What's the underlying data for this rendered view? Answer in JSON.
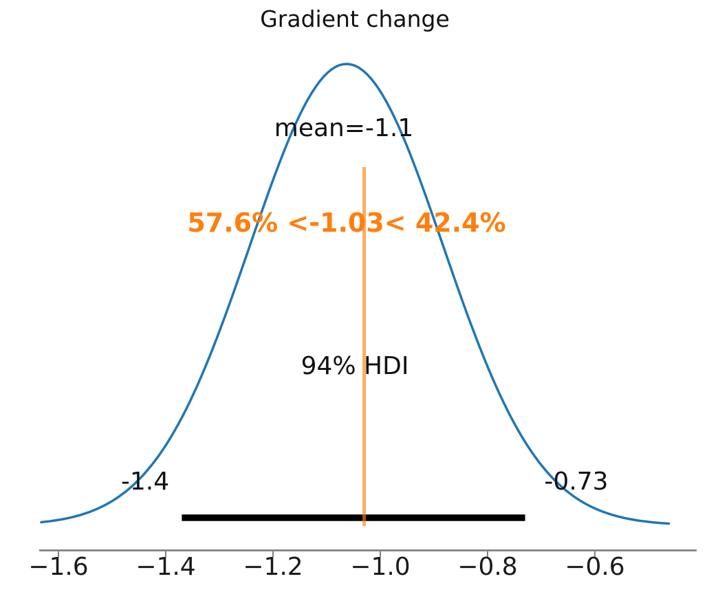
{
  "chart_data": {
    "type": "kde",
    "title": "Gradient change",
    "point_estimate": {
      "kind": "mean",
      "value": -1.1,
      "label": "mean=-1.1"
    },
    "hdi": {
      "prob": 0.94,
      "label": "94% HDI",
      "lower": -1.37,
      "upper": -0.73,
      "lower_label": "-1.4",
      "upper_label": "-0.73"
    },
    "ref_val": {
      "value": -1.03,
      "pct_below": 57.6,
      "pct_above": 42.4,
      "label": "57.6% <-1.03< 42.4%"
    },
    "x_axis": {
      "ticks": [
        -1.6,
        -1.4,
        -1.2,
        -1.0,
        -0.8,
        -0.6
      ],
      "tick_labels": [
        "−1.6",
        "−1.4",
        "−1.2",
        "−1.0",
        "−0.8",
        "−0.6"
      ],
      "range": [
        -1.636,
        -0.41
      ]
    },
    "density": {
      "mode": -1.063,
      "sigma": 0.18,
      "x_start": -1.632,
      "x_end": -0.462
    },
    "colors": {
      "curve": "#1f77b4",
      "ref_line_rgba": "rgba(255,127,14,0.65)",
      "ref_text": "#ff7f0e",
      "hdi_bar": "#000000",
      "axis": "#808080",
      "text": "#111111"
    }
  }
}
